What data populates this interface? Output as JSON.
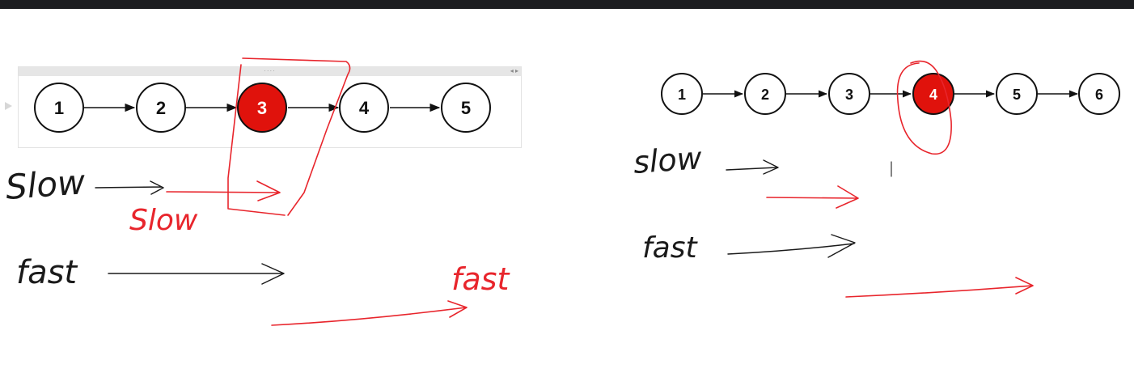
{
  "left_list": {
    "nodes": [
      "1",
      "2",
      "3",
      "4",
      "5"
    ],
    "highlighted": "3",
    "annotations": {
      "slow_black": "Slow",
      "slow_red": "Slow",
      "fast_black": "fast",
      "fast_red": "fast"
    }
  },
  "right_list": {
    "nodes": [
      "1",
      "2",
      "3",
      "4",
      "5",
      "6"
    ],
    "highlighted": "4",
    "annotations": {
      "slow_black": "slow",
      "fast_black": "fast"
    }
  },
  "colors": {
    "highlight": "#e0120c",
    "ink_red": "#e8252c",
    "ink_black": "#1a1a1a",
    "node_stroke": "#111111"
  }
}
